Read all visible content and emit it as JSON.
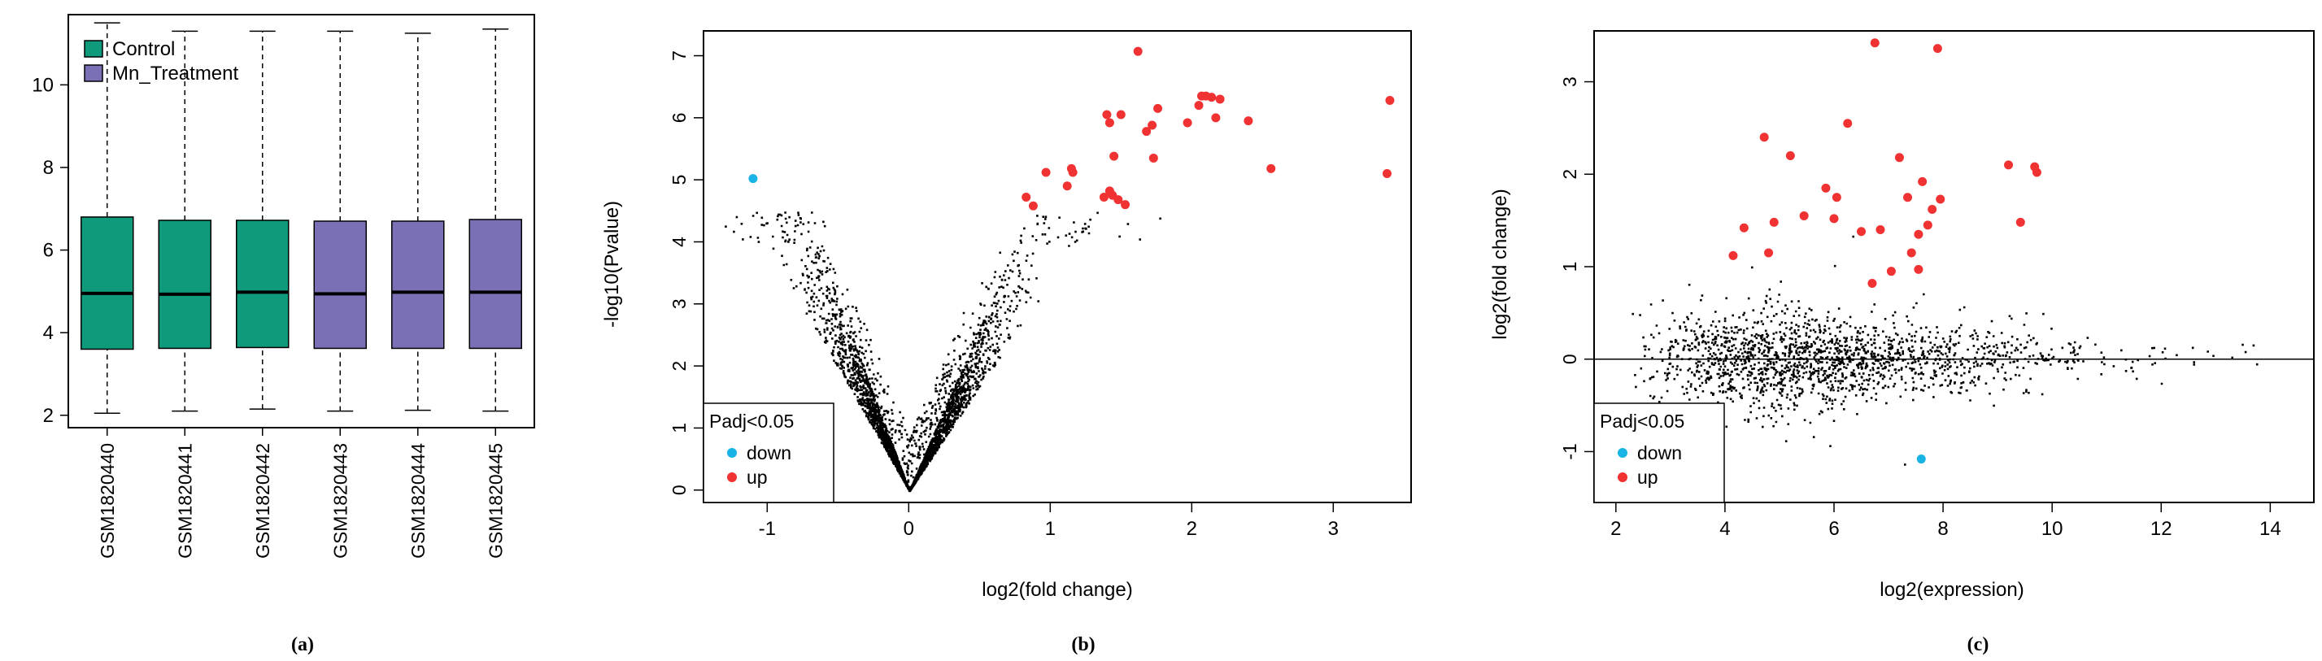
{
  "chart_data": [
    {
      "type": "box",
      "caption": "(a)",
      "categories": [
        "GSM1820440",
        "GSM1820441",
        "GSM1820442",
        "GSM1820443",
        "GSM1820444",
        "GSM1820445"
      ],
      "groups": [
        "Control",
        "Control",
        "Control",
        "Mn_Treatment",
        "Mn_Treatment",
        "Mn_Treatment"
      ],
      "legend": [
        {
          "label": "Control",
          "color": "#109a7c"
        },
        {
          "label": "Mn_Treatment",
          "color": "#7a70b6"
        }
      ],
      "legend_position": "top-left",
      "boxes": [
        {
          "min": 2.05,
          "q1": 3.6,
          "median": 4.95,
          "q3": 6.8,
          "max": 11.5
        },
        {
          "min": 2.1,
          "q1": 3.62,
          "median": 4.93,
          "q3": 6.72,
          "max": 11.3
        },
        {
          "min": 2.15,
          "q1": 3.64,
          "median": 4.98,
          "q3": 6.72,
          "max": 11.3
        },
        {
          "min": 2.1,
          "q1": 3.62,
          "median": 4.94,
          "q3": 6.7,
          "max": 11.3
        },
        {
          "min": 2.12,
          "q1": 3.62,
          "median": 4.98,
          "q3": 6.7,
          "max": 11.25
        },
        {
          "min": 2.1,
          "q1": 3.62,
          "median": 4.98,
          "q3": 6.74,
          "max": 11.35
        }
      ],
      "ylim": [
        1.7,
        11.7
      ],
      "yticks": [
        2,
        4,
        6,
        8,
        10
      ],
      "xlabel": "",
      "ylabel": ""
    },
    {
      "type": "scatter",
      "caption": "(b)",
      "xlabel": "log2(fold change)",
      "ylabel": "-log10(Pvalue)",
      "xlim": [
        -1.45,
        3.55
      ],
      "ylim": [
        -0.2,
        7.4
      ],
      "xticks": [
        -1,
        0,
        1,
        2,
        3
      ],
      "yticks": [
        0,
        1,
        2,
        3,
        4,
        5,
        6,
        7
      ],
      "legend_title": "Padj<0.05",
      "legend_position": "bottom-left",
      "series": [
        {
          "name": "down",
          "color": "#1ab3e6",
          "points": [
            [
              -1.1,
              5.02
            ]
          ]
        },
        {
          "name": "up",
          "color": "#f03232",
          "points": [
            [
              0.83,
              4.72
            ],
            [
              0.88,
              4.58
            ],
            [
              0.97,
              5.12
            ],
            [
              1.12,
              4.9
            ],
            [
              1.15,
              5.18
            ],
            [
              1.16,
              5.12
            ],
            [
              1.38,
              4.72
            ],
            [
              1.42,
              4.82
            ],
            [
              1.44,
              4.75
            ],
            [
              1.48,
              4.68
            ],
            [
              1.53,
              4.6
            ],
            [
              1.45,
              5.38
            ],
            [
              1.4,
              6.05
            ],
            [
              1.42,
              5.92
            ],
            [
              1.5,
              6.05
            ],
            [
              1.62,
              7.07
            ],
            [
              1.68,
              5.78
            ],
            [
              1.72,
              5.88
            ],
            [
              1.73,
              5.35
            ],
            [
              1.76,
              6.15
            ],
            [
              1.97,
              5.92
            ],
            [
              2.05,
              6.2
            ],
            [
              2.07,
              6.35
            ],
            [
              2.1,
              6.35
            ],
            [
              2.14,
              6.33
            ],
            [
              2.17,
              6.0
            ],
            [
              2.2,
              6.3
            ],
            [
              2.4,
              5.95
            ],
            [
              2.56,
              5.18
            ],
            [
              3.38,
              5.1
            ],
            [
              3.4,
              6.28
            ]
          ]
        }
      ]
    },
    {
      "type": "scatter",
      "caption": "(c)",
      "xlabel": "log2(expression)",
      "ylabel": "log2(fold change)",
      "xlim": [
        1.6,
        14.8
      ],
      "ylim": [
        -1.55,
        3.55
      ],
      "xticks": [
        2,
        4,
        6,
        8,
        10,
        12,
        14
      ],
      "yticks": [
        -1,
        0,
        1,
        2,
        3
      ],
      "hline": 0,
      "legend_title": "Padj<0.05",
      "legend_position": "bottom-left",
      "series": [
        {
          "name": "down",
          "color": "#1ab3e6",
          "points": [
            [
              7.6,
              -1.08
            ]
          ]
        },
        {
          "name": "up",
          "color": "#f03232",
          "points": [
            [
              4.15,
              1.12
            ],
            [
              4.35,
              1.42
            ],
            [
              4.72,
              2.4
            ],
            [
              4.8,
              1.15
            ],
            [
              4.9,
              1.48
            ],
            [
              5.2,
              2.2
            ],
            [
              5.45,
              1.55
            ],
            [
              5.85,
              1.85
            ],
            [
              6.05,
              1.75
            ],
            [
              6.0,
              1.52
            ],
            [
              6.25,
              2.55
            ],
            [
              6.5,
              1.38
            ],
            [
              6.75,
              3.42
            ],
            [
              6.85,
              1.4
            ],
            [
              7.05,
              0.95
            ],
            [
              7.2,
              2.18
            ],
            [
              7.35,
              1.75
            ],
            [
              7.42,
              1.15
            ],
            [
              7.55,
              1.35
            ],
            [
              7.62,
              1.92
            ],
            [
              7.72,
              1.45
            ],
            [
              7.8,
              1.62
            ],
            [
              7.9,
              3.36
            ],
            [
              7.95,
              1.73
            ],
            [
              9.2,
              2.1
            ],
            [
              9.42,
              1.48
            ],
            [
              9.68,
              2.08
            ],
            [
              9.72,
              2.02
            ],
            [
              7.55,
              0.97
            ],
            [
              6.7,
              0.82
            ]
          ]
        }
      ]
    }
  ]
}
